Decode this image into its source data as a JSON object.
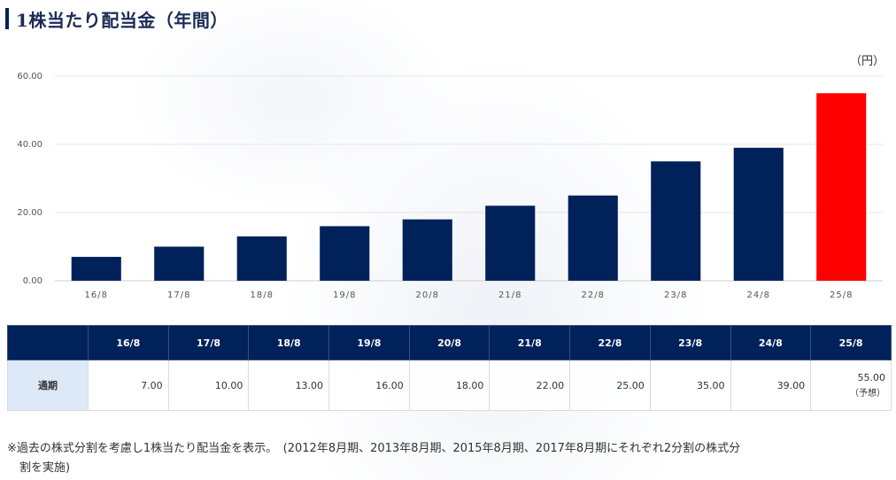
{
  "header": {
    "title": "1株当たり配当金（年間）"
  },
  "chart_data": {
    "type": "bar",
    "unit": "（円）",
    "categories": [
      "16/8",
      "17/8",
      "18/8",
      "19/8",
      "20/8",
      "21/8",
      "22/8",
      "23/8",
      "24/8",
      "25/8"
    ],
    "values": [
      7.0,
      10.0,
      13.0,
      16.0,
      18.0,
      22.0,
      25.0,
      35.0,
      39.0,
      55.0
    ],
    "yticks": [
      "0.00",
      "20.00",
      "40.00",
      "60.00"
    ],
    "ylim": [
      0,
      60
    ],
    "grid": true,
    "colors": {
      "default": "#00215a",
      "forecast": "#ff0000"
    },
    "forecast_index": 9
  },
  "table": {
    "headers": [
      "",
      "16/8",
      "17/8",
      "18/8",
      "19/8",
      "20/8",
      "21/8",
      "22/8",
      "23/8",
      "24/8",
      "25/8"
    ],
    "row_label": "通期",
    "values": [
      "7.00",
      "10.00",
      "13.00",
      "16.00",
      "18.00",
      "22.00",
      "25.00",
      "35.00",
      "39.00",
      "55.00"
    ],
    "forecast_note": "（予想）"
  },
  "note": {
    "line1": "※過去の株式分割を考慮し1株当たり配当金を表示。　(2012年8月期、2013年8月期、2015年8月期、2017年8月期にそれぞれ2分割の株式分",
    "line2": "割を実施)"
  }
}
